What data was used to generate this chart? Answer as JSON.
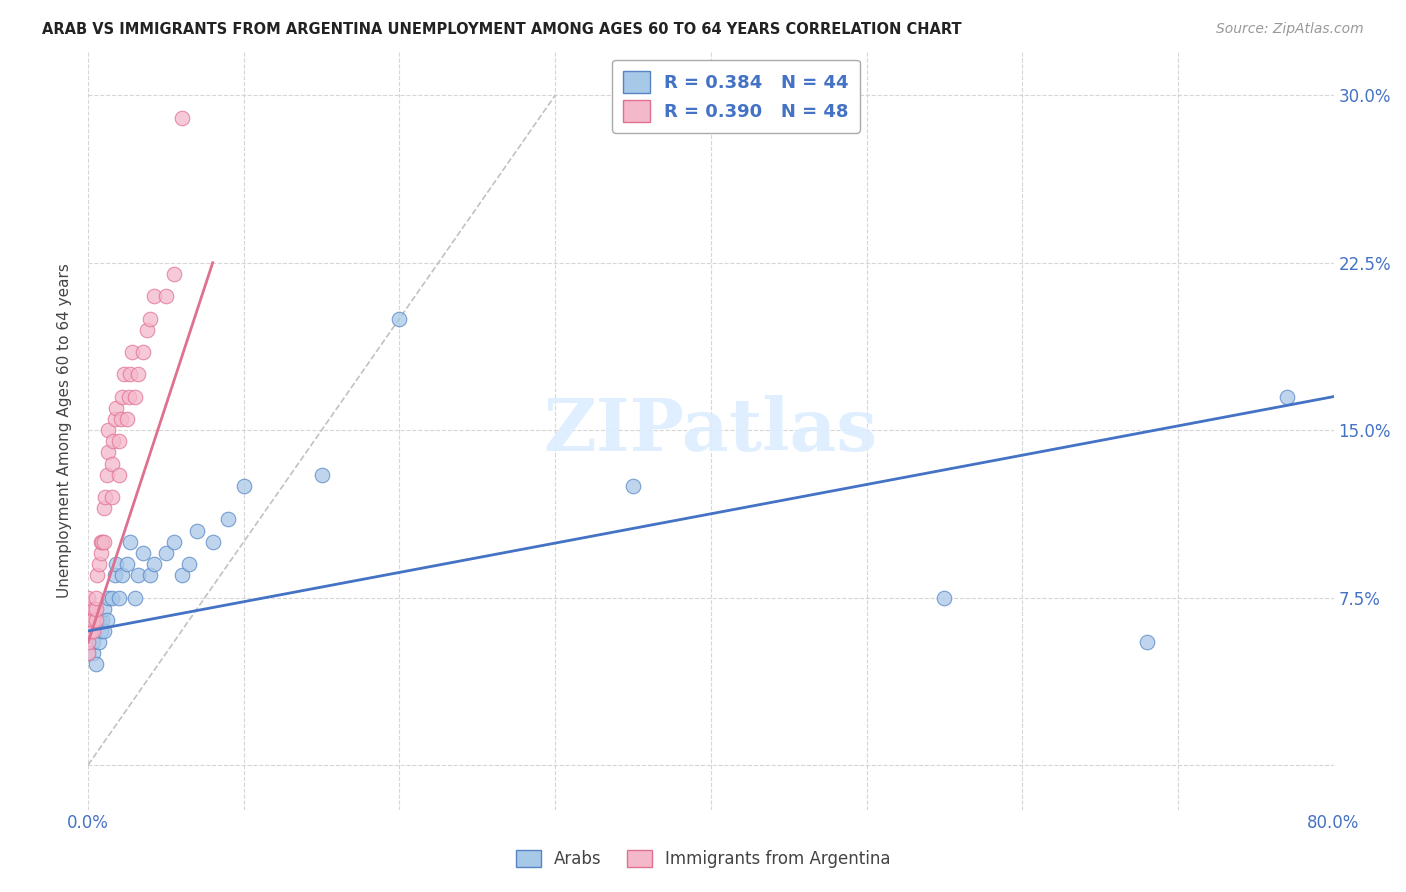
{
  "title": "ARAB VS IMMIGRANTS FROM ARGENTINA UNEMPLOYMENT AMONG AGES 60 TO 64 YEARS CORRELATION CHART",
  "source": "Source: ZipAtlas.com",
  "ylabel": "Unemployment Among Ages 60 to 64 years",
  "xlim": [
    0.0,
    0.8
  ],
  "ylim": [
    -0.02,
    0.32
  ],
  "x_ticks": [
    0.0,
    0.1,
    0.2,
    0.3,
    0.4,
    0.5,
    0.6,
    0.7,
    0.8
  ],
  "x_tick_labels": [
    "0.0%",
    "",
    "",
    "",
    "",
    "",
    "",
    "",
    "80.0%"
  ],
  "y_ticks": [
    0.0,
    0.075,
    0.15,
    0.225,
    0.3
  ],
  "y_tick_labels": [
    "",
    "7.5%",
    "15.0%",
    "22.5%",
    "30.0%"
  ],
  "arab_R": 0.384,
  "arab_N": 44,
  "arg_R": 0.39,
  "arg_N": 48,
  "arab_color": "#a8c8e8",
  "arg_color": "#f4b8cb",
  "arab_edge_color": "#5585c5",
  "arg_edge_color": "#e07090",
  "arab_line_color": "#4472c4",
  "arg_line_color": "#e07090",
  "dash_color": "#bbbbbb",
  "watermark_color": "#ddeeff",
  "background_color": "#ffffff",
  "grid_color": "#cccccc",
  "arab_x": [
    0.0,
    0.0,
    0.0,
    0.0,
    0.0,
    0.003,
    0.003,
    0.004,
    0.005,
    0.005,
    0.007,
    0.007,
    0.008,
    0.009,
    0.01,
    0.01,
    0.012,
    0.013,
    0.015,
    0.017,
    0.018,
    0.02,
    0.022,
    0.025,
    0.027,
    0.03,
    0.032,
    0.035,
    0.04,
    0.042,
    0.05,
    0.055,
    0.06,
    0.065,
    0.07,
    0.08,
    0.09,
    0.1,
    0.15,
    0.2,
    0.35,
    0.55,
    0.68,
    0.77
  ],
  "arab_y": [
    0.05,
    0.055,
    0.06,
    0.065,
    0.07,
    0.05,
    0.055,
    0.06,
    0.045,
    0.065,
    0.055,
    0.065,
    0.06,
    0.065,
    0.06,
    0.07,
    0.065,
    0.075,
    0.075,
    0.085,
    0.09,
    0.075,
    0.085,
    0.09,
    0.1,
    0.075,
    0.085,
    0.095,
    0.085,
    0.09,
    0.095,
    0.1,
    0.085,
    0.09,
    0.105,
    0.1,
    0.11,
    0.125,
    0.13,
    0.2,
    0.125,
    0.075,
    0.055,
    0.165
  ],
  "arg_x": [
    0.0,
    0.0,
    0.0,
    0.0,
    0.0,
    0.0,
    0.002,
    0.002,
    0.003,
    0.003,
    0.004,
    0.005,
    0.005,
    0.005,
    0.006,
    0.007,
    0.008,
    0.008,
    0.009,
    0.01,
    0.01,
    0.011,
    0.012,
    0.013,
    0.013,
    0.015,
    0.015,
    0.016,
    0.017,
    0.018,
    0.02,
    0.02,
    0.021,
    0.022,
    0.023,
    0.025,
    0.026,
    0.027,
    0.028,
    0.03,
    0.032,
    0.035,
    0.038,
    0.04,
    0.042,
    0.05,
    0.055,
    0.06
  ],
  "arg_y": [
    0.05,
    0.055,
    0.06,
    0.065,
    0.07,
    0.075,
    0.06,
    0.065,
    0.06,
    0.065,
    0.07,
    0.065,
    0.07,
    0.075,
    0.085,
    0.09,
    0.095,
    0.1,
    0.1,
    0.1,
    0.115,
    0.12,
    0.13,
    0.14,
    0.15,
    0.12,
    0.135,
    0.145,
    0.155,
    0.16,
    0.13,
    0.145,
    0.155,
    0.165,
    0.175,
    0.155,
    0.165,
    0.175,
    0.185,
    0.165,
    0.175,
    0.185,
    0.195,
    0.2,
    0.21,
    0.21,
    0.22,
    0.29
  ],
  "arab_line_x": [
    0.0,
    0.8
  ],
  "arab_line_y": [
    0.06,
    0.165
  ],
  "arg_line_x": [
    0.0,
    0.08
  ],
  "arg_line_y": [
    0.055,
    0.225
  ],
  "dash_line_x": [
    0.0,
    0.3
  ],
  "dash_line_y": [
    0.0,
    0.3
  ]
}
